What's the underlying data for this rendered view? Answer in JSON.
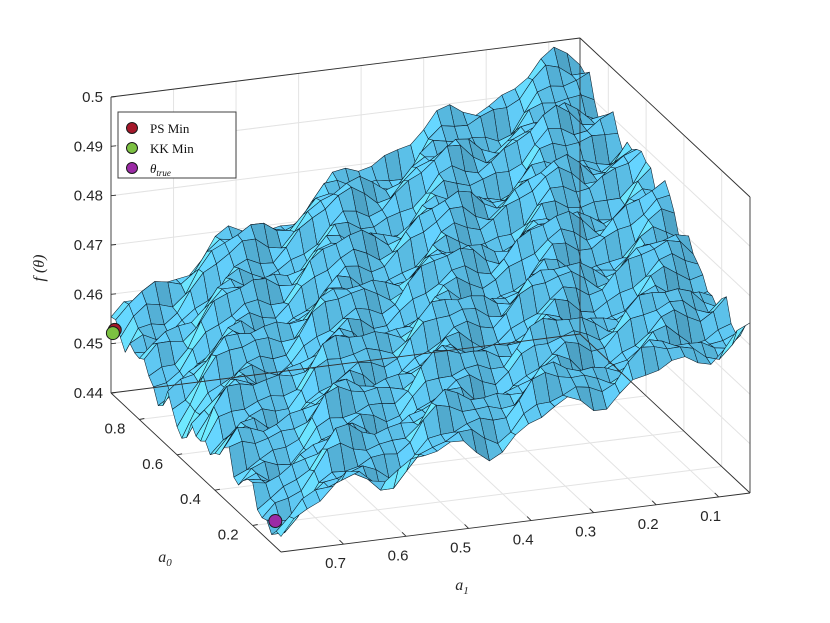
{
  "chart_data": {
    "type": "surface",
    "title": "",
    "xlabel": "a1",
    "ylabel": "a0",
    "zlabel": "f(θ)",
    "xlim": [
      0.05,
      0.8
    ],
    "ylim": [
      0.05,
      0.95
    ],
    "zlim": [
      0.44,
      0.5
    ],
    "x_ticks": [
      0.1,
      0.2,
      0.3,
      0.4,
      0.5,
      0.6,
      0.7
    ],
    "y_ticks": [
      0.2,
      0.4,
      0.6,
      0.8
    ],
    "z_ticks": [
      0.44,
      0.45,
      0.46,
      0.47,
      0.48,
      0.49,
      0.5
    ],
    "x_tick_labels": [
      "0.1",
      "0.2",
      "0.3",
      "0.4",
      "0.5",
      "0.6",
      "0.7"
    ],
    "y_tick_labels": [
      "0.2",
      "0.4",
      "0.6",
      "0.8"
    ],
    "z_tick_labels": [
      "0.44",
      "0.45",
      "0.46",
      "0.47",
      "0.48",
      "0.49",
      "0.5"
    ],
    "grid": true,
    "surface_color": "#5ec6f0",
    "edge_color": "#0d1e2a",
    "surface_model": {
      "description_values": {
        "f_at_a1_0.8_a0_0.95": 0.452,
        "f_at_a1_0.05_a0_0.95": 0.495,
        "f_at_a1_0.05_a0_0.05": 0.47,
        "f_at_a1_0.8_a0_0.05": 0.444
      }
    },
    "points": [
      {
        "name": "PS Min",
        "a1": 0.8,
        "a0": 0.93,
        "f": 0.4535,
        "color": "#a5182a"
      },
      {
        "name": "KK Min",
        "a1": 0.8,
        "a0": 0.94,
        "f": 0.4525,
        "color": "#7cc142"
      },
      {
        "name": "θtrue",
        "a1": 0.8,
        "a0": 0.08,
        "f": 0.4452,
        "color": "#9b2aa5"
      }
    ],
    "legend": {
      "position": "top-left",
      "entries": [
        {
          "label": "PS Min",
          "color": "#a5182a"
        },
        {
          "label": "KK Min",
          "color": "#7cc142"
        },
        {
          "label": "θ",
          "sub": "true",
          "color": "#9b2aa5"
        }
      ]
    }
  }
}
